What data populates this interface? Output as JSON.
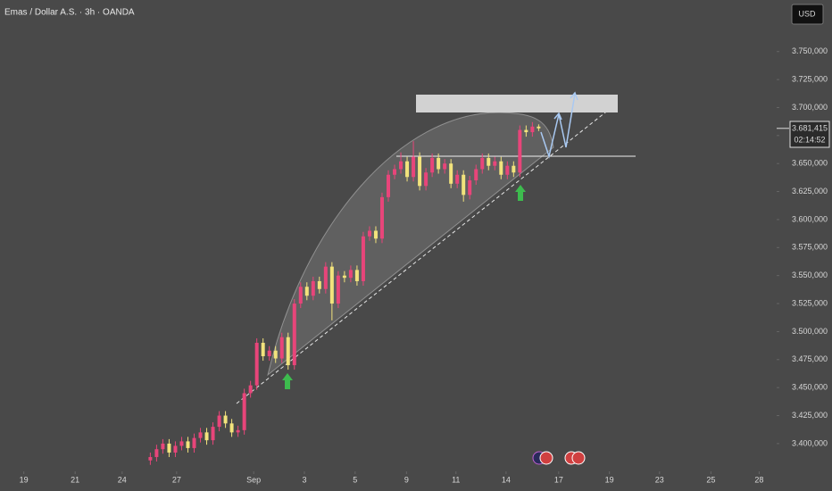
{
  "chart_data": {
    "type": "candlestick",
    "title": "Emas / Dollar A.S. · 3h · OANDA",
    "currency_button": "USD",
    "up_color": "#e8457a",
    "down_color": "#f2e37c",
    "open": [
      3385000,
      3388000,
      3395000,
      3400000,
      3392000,
      3398000,
      3402000,
      3396000,
      3405000,
      3410000,
      3403000,
      3415000,
      3425000,
      3418000,
      3410000,
      3412000,
      3445000,
      3452000,
      3490000,
      3478000,
      3483000,
      3476000,
      3495000,
      3470000,
      3525000,
      3540000,
      3532000,
      3545000,
      3538000,
      3558000,
      3525000,
      3550000,
      3548000,
      3555000,
      3545000,
      3585000,
      3590000,
      3583000,
      3620000,
      3640000,
      3645000,
      3652000,
      3638000,
      3656000,
      3630000,
      3642000,
      3655000,
      3645000,
      3650000,
      3632000,
      3640000,
      3622000,
      3635000,
      3645000,
      3655000,
      3648000,
      3652000,
      3640000,
      3648000,
      3642000,
      3680000,
      3678000,
      3683000
    ],
    "high": [
      3392000,
      3399000,
      3404000,
      3404000,
      3402000,
      3406000,
      3406000,
      3409000,
      3414000,
      3414000,
      3419000,
      3429000,
      3429000,
      3422000,
      3416000,
      3449000,
      3456000,
      3494000,
      3494000,
      3487000,
      3487000,
      3499000,
      3499000,
      3529000,
      3544000,
      3544000,
      3549000,
      3549000,
      3562000,
      3562000,
      3554000,
      3554000,
      3559000,
      3559000,
      3589000,
      3594000,
      3594000,
      3624000,
      3644000,
      3649000,
      3660000,
      3656000,
      3670000,
      3660000,
      3646000,
      3659000,
      3659000,
      3654000,
      3654000,
      3644000,
      3644000,
      3639000,
      3649000,
      3659000,
      3659000,
      3656000,
      3656000,
      3652000,
      3652000,
      3684000,
      3684000,
      3687000,
      3685000
    ],
    "low": [
      3381000,
      3384000,
      3391000,
      3388000,
      3388000,
      3394000,
      3392000,
      3392000,
      3401000,
      3399000,
      3399000,
      3411000,
      3414000,
      3406000,
      3406000,
      3408000,
      3441000,
      3448000,
      3474000,
      3474000,
      3472000,
      3472000,
      3466000,
      3466000,
      3521000,
      3528000,
      3528000,
      3534000,
      3534000,
      3510000,
      3521000,
      3544000,
      3544000,
      3541000,
      3541000,
      3581000,
      3579000,
      3579000,
      3616000,
      3636000,
      3641000,
      3634000,
      3634000,
      3626000,
      3626000,
      3638000,
      3641000,
      3641000,
      3628000,
      3628000,
      3616000,
      3618000,
      3631000,
      3641000,
      3644000,
      3644000,
      3636000,
      3636000,
      3638000,
      3638000,
      3674000,
      3674000,
      3679000
    ],
    "close": [
      3388000,
      3395000,
      3400000,
      3392000,
      3398000,
      3402000,
      3396000,
      3405000,
      3410000,
      3403000,
      3415000,
      3425000,
      3418000,
      3410000,
      3412000,
      3445000,
      3452000,
      3490000,
      3478000,
      3483000,
      3476000,
      3495000,
      3470000,
      3525000,
      3540000,
      3532000,
      3545000,
      3538000,
      3558000,
      3525000,
      3550000,
      3548000,
      3555000,
      3545000,
      3585000,
      3590000,
      3583000,
      3620000,
      3640000,
      3645000,
      3652000,
      3638000,
      3656000,
      3630000,
      3642000,
      3655000,
      3645000,
      3650000,
      3632000,
      3640000,
      3622000,
      3635000,
      3645000,
      3655000,
      3648000,
      3652000,
      3640000,
      3648000,
      3642000,
      3680000,
      3678000,
      3683000,
      3681415
    ],
    "last_price": {
      "value": 3681415,
      "label": "3.681,415"
    },
    "countdown": "02:14:52",
    "xlim": [
      -24,
      100
    ],
    "xticks": [
      {
        "value": -20.2,
        "label": "19"
      },
      {
        "value": -12,
        "label": "21"
      },
      {
        "value": -4.5,
        "label": "24"
      },
      {
        "value": 4.2,
        "label": "27"
      },
      {
        "value": 16.5,
        "label": "Sep"
      },
      {
        "value": 24.6,
        "label": "3"
      },
      {
        "value": 32.7,
        "label": "5"
      },
      {
        "value": 40.9,
        "label": "9"
      },
      {
        "value": 48.8,
        "label": "11"
      },
      {
        "value": 56.8,
        "label": "14"
      },
      {
        "value": 65.2,
        "label": "17"
      },
      {
        "value": 73.3,
        "label": "19"
      },
      {
        "value": 81.3,
        "label": "23"
      },
      {
        "value": 89.5,
        "label": "25"
      },
      {
        "value": 97.2,
        "label": "28"
      }
    ],
    "ylim": [
      3380000,
      3796000
    ],
    "yticks": [
      {
        "value": 3400000,
        "label": "3.400,000"
      },
      {
        "value": 3425000,
        "label": "3.425,000"
      },
      {
        "value": 3450000,
        "label": "3.450,000"
      },
      {
        "value": 3475000,
        "label": "3.475,000"
      },
      {
        "value": 3500000,
        "label": "3.500,000"
      },
      {
        "value": 3525000,
        "label": "3.525,000"
      },
      {
        "value": 3550000,
        "label": "3.550,000"
      },
      {
        "value": 3575000,
        "label": "3.575,000"
      },
      {
        "value": 3600000,
        "label": "3.600,000"
      },
      {
        "value": 3625000,
        "label": "3.625,000"
      },
      {
        "value": 3650000,
        "label": "3.650,000"
      },
      {
        "value": 3675000,
        "label": "3.675,000"
      },
      {
        "value": 3700000,
        "label": "3.700,000"
      },
      {
        "value": 3725000,
        "label": "3.725,000"
      },
      {
        "value": 3750000,
        "label": "3.750,000"
      }
    ],
    "grid": false
  }
}
